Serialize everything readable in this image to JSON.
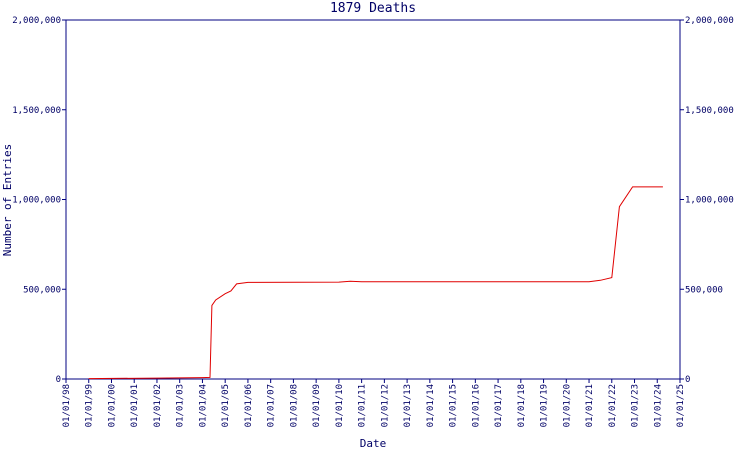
{
  "chart_data": {
    "type": "line",
    "title": "1879 Deaths",
    "x_label": "Date",
    "y_label": "Number of Entries",
    "x": [
      "01/01/99",
      "01/01/02",
      "01/01/04",
      "05/01/04",
      "06/01/04",
      "08/01/04",
      "01/01/05",
      "04/01/05",
      "07/01/05",
      "01/01/06",
      "01/01/10",
      "07/01/10",
      "01/01/11",
      "01/01/21",
      "07/01/21",
      "01/01/22",
      "05/01/22",
      "12/01/22",
      "04/01/24"
    ],
    "values": [
      2000,
      5000,
      8000,
      9000,
      410000,
      440000,
      475000,
      490000,
      530000,
      538000,
      540000,
      545000,
      542000,
      542000,
      550000,
      565000,
      960000,
      1070000,
      1070000
    ],
    "color": "#e00000",
    "xlim": [
      "01/01/98",
      "01/01/25"
    ],
    "xticks": [
      "01/01/98",
      "01/01/99",
      "01/01/00",
      "01/01/01",
      "01/01/02",
      "01/01/03",
      "01/01/04",
      "01/01/05",
      "01/01/06",
      "01/01/07",
      "01/01/08",
      "01/01/09",
      "01/01/10",
      "01/01/11",
      "01/01/12",
      "01/01/13",
      "01/01/14",
      "01/01/15",
      "01/01/16",
      "01/01/17",
      "01/01/18",
      "01/01/19",
      "01/01/20",
      "01/01/21",
      "01/01/22",
      "01/01/23",
      "01/01/24",
      "01/01/25"
    ],
    "ylim": [
      0,
      2000000
    ],
    "yticks": [
      0,
      {
        "value": 500000,
        "label": "500,000"
      },
      {
        "value": 1000000,
        "label": "1,000,000"
      },
      {
        "value": 1500000,
        "label": "1,500,000"
      },
      {
        "value": 2000000,
        "label": "2,000,000"
      }
    ],
    "y2lim": [
      0,
      2000000
    ],
    "y2ticks": [
      0,
      {
        "value": 500000,
        "label": "500,000"
      },
      {
        "value": 1000000,
        "label": "1,000,000"
      },
      {
        "value": 1500000,
        "label": "1,500,000"
      },
      {
        "value": 2000000,
        "label": "2,000,000"
      }
    ]
  }
}
